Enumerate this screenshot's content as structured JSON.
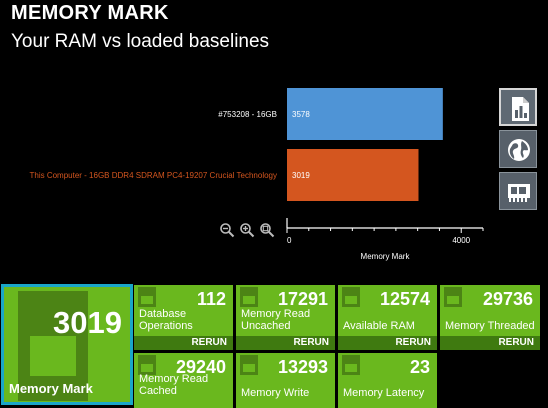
{
  "header": {
    "title": "MEMORY MARK",
    "subtitle": "Your RAM vs loaded baselines"
  },
  "chart_data": {
    "type": "bar",
    "orientation": "horizontal",
    "categories": [
      "#753208 - 16GB",
      "This Computer - 16GB DDR4 SDRAM PC4-19207 Crucial Technology"
    ],
    "values": [
      3578,
      3019
    ],
    "value_labels": [
      "3578",
      "3019"
    ],
    "colors": [
      "#4f94d6",
      "#d4561f"
    ],
    "category_colors": [
      "#ffffff",
      "#d4561f"
    ],
    "xlabel": "Memory Mark",
    "ylabel": "",
    "title": "",
    "xlim": [
      0,
      4500
    ],
    "ticks": [
      0,
      4000
    ],
    "tick_labels": [
      "0",
      "4000"
    ]
  },
  "zoom_controls": [
    {
      "name": "zoom-out-icon"
    },
    {
      "name": "zoom-in-icon"
    },
    {
      "name": "zoom-reset-icon"
    }
  ],
  "side_buttons": [
    {
      "name": "report-icon",
      "active": true
    },
    {
      "name": "globe-icon",
      "active": false
    },
    {
      "name": "ram-card-icon",
      "active": false
    }
  ],
  "summary": {
    "value": "3019",
    "label": "Memory Mark"
  },
  "tests": [
    {
      "value": "112",
      "label": "Database Operations",
      "rerun": "RERUN"
    },
    {
      "value": "17291",
      "label": "Memory Read Uncached",
      "rerun": "RERUN"
    },
    {
      "value": "12574",
      "label": "Available RAM",
      "rerun": "RERUN"
    },
    {
      "value": "29736",
      "label": "Memory Threaded",
      "rerun": "RERUN"
    },
    {
      "value": "29240",
      "label": "Memory Read Cached",
      "rerun": ""
    },
    {
      "value": "13293",
      "label": "Memory Write",
      "rerun": ""
    },
    {
      "value": "23",
      "label": "Memory Latency",
      "rerun": ""
    }
  ],
  "colors": {
    "tile": "#6ab81e",
    "tile_dark": "#3f7a10",
    "highlight_border": "#1aa6c8"
  }
}
